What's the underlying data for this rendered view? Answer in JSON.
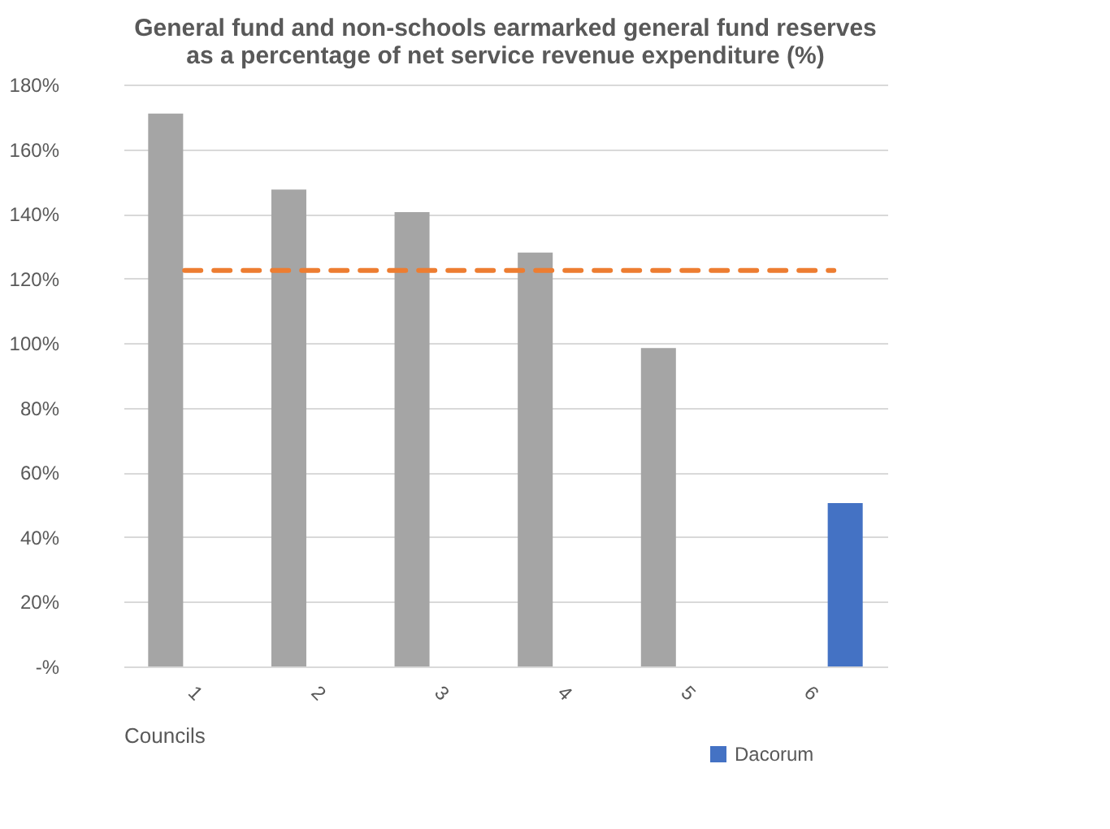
{
  "chart_data": {
    "type": "bar",
    "title": "General fund and non-schools earmarked general fund reserves as a percentage of net service revenue expenditure (%)",
    "xlabel": "Councils",
    "categories": [
      "1",
      "2",
      "3",
      "4",
      "5",
      "6"
    ],
    "series": [
      {
        "color": "#a5a5a5",
        "values": [
          171,
          147.5,
          140.5,
          128,
          98.5,
          null
        ]
      },
      {
        "name": "Dacorum",
        "color": "#4472c4",
        "values": [
          null,
          null,
          null,
          null,
          null,
          50.5
        ]
      }
    ],
    "ylim": [
      0,
      180
    ],
    "yticks": [
      {
        "value": 0,
        "label": "-%"
      },
      {
        "value": 20,
        "label": "20%"
      },
      {
        "value": 40,
        "label": "40%"
      },
      {
        "value": 60,
        "label": "60%"
      },
      {
        "value": 80,
        "label": "80%"
      },
      {
        "value": 100,
        "label": "100%"
      },
      {
        "value": 120,
        "label": "120%"
      },
      {
        "value": 140,
        "label": "140%"
      },
      {
        "value": 160,
        "label": "160%"
      },
      {
        "value": 180,
        "label": "180%"
      }
    ],
    "ref_lines": [
      {
        "axis": "y",
        "value": 122.5,
        "color": "#ed7d31",
        "line_style": "dashed"
      }
    ],
    "grid": "y",
    "legend": "bottom right"
  }
}
